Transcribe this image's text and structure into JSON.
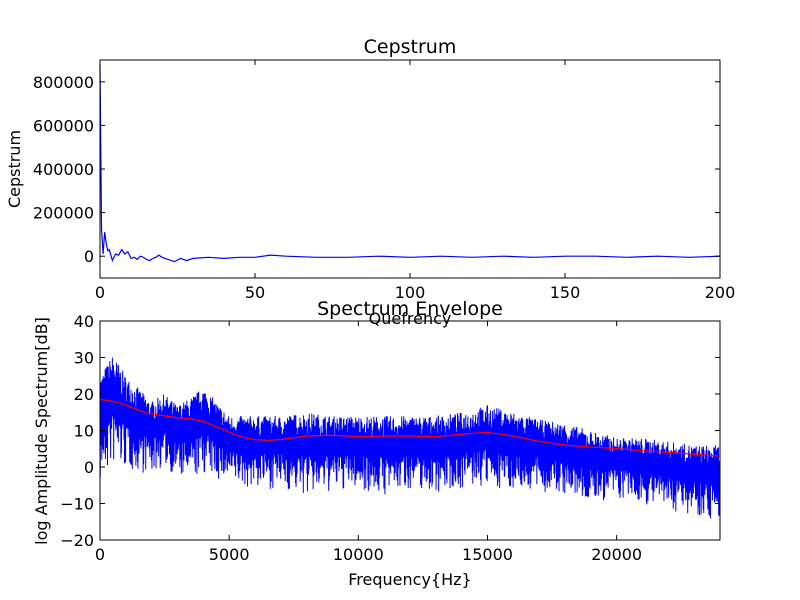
{
  "chart_data": [
    {
      "type": "line",
      "title": "Cepstrum",
      "xlabel": "Quefrency",
      "ylabel": "Cepstrum",
      "xlim": [
        0,
        200
      ],
      "ylim": [
        -100000,
        900000
      ],
      "xticks": [
        0,
        50,
        100,
        150,
        200
      ],
      "yticks": [
        0,
        200000,
        400000,
        600000,
        800000
      ],
      "grid": false,
      "series": [
        {
          "color": "#0000ff",
          "x": [
            0,
            0.5,
            1,
            1.5,
            2,
            2.5,
            3,
            3.5,
            4,
            5,
            6,
            7,
            8,
            9,
            10,
            11,
            12,
            13,
            14,
            15,
            16,
            17,
            18,
            19,
            20,
            22,
            24,
            26,
            28,
            30,
            35,
            40,
            45,
            50,
            55,
            60,
            70,
            80,
            90,
            100,
            110,
            120,
            130,
            140,
            150,
            160,
            170,
            180,
            190,
            200
          ],
          "y": [
            880000,
            120000,
            10000,
            110000,
            60000,
            25000,
            30000,
            5000,
            -20000,
            10000,
            5000,
            30000,
            10000,
            20000,
            -10000,
            -5000,
            -15000,
            0,
            -5000,
            -15000,
            -20000,
            -10000,
            -5000,
            5000,
            -5000,
            -15000,
            -25000,
            -10000,
            -20000,
            -10000,
            -5000,
            -10000,
            -5000,
            -5000,
            5000,
            0,
            -5000,
            -5000,
            0,
            -5000,
            0,
            -5000,
            0,
            -5000,
            0,
            0,
            -5000,
            0,
            -5000,
            0
          ]
        }
      ]
    },
    {
      "type": "line",
      "title": "Spectrum Envelope",
      "xlabel": "Frequency{Hz}",
      "ylabel": "log Amplitude Spectrum[dB]",
      "xlim": [
        0,
        24000
      ],
      "ylim": [
        -20,
        40
      ],
      "xticks": [
        0,
        5000,
        10000,
        15000,
        20000
      ],
      "yticks": [
        -20,
        -10,
        0,
        10,
        20,
        30,
        40
      ],
      "grid": false,
      "series": [
        {
          "color": "#0000ff",
          "x": [
            0,
            500,
            1000,
            2000,
            2500,
            3000,
            3500,
            4000,
            5000,
            6000,
            7000,
            8000,
            9000,
            10000,
            11000,
            12000,
            13000,
            14000,
            15000,
            16000,
            17000,
            18000,
            19000,
            20000,
            21000,
            22000,
            23000,
            24000
          ],
          "upper": [
            25,
            31,
            25,
            18,
            20,
            17,
            19,
            22,
            14,
            14,
            14,
            15,
            14,
            14,
            14,
            14,
            14,
            15,
            17,
            15,
            13,
            12,
            10,
            8,
            8,
            7,
            6,
            6
          ],
          "lower": [
            -5,
            0,
            -1,
            -2,
            0,
            -3,
            -4,
            -2,
            -5,
            -6,
            -6,
            -8,
            -7,
            -6,
            -8,
            -6,
            -7,
            -6,
            -6,
            -6,
            -7,
            -8,
            -10,
            -9,
            -10,
            -12,
            -13,
            -15
          ]
        },
        {
          "color": "#ff0000",
          "x": [
            0,
            500,
            1000,
            1500,
            2000,
            2500,
            3000,
            3500,
            4000,
            4500,
            5000,
            5500,
            6000,
            6500,
            7000,
            8000,
            9000,
            10000,
            11000,
            12000,
            13000,
            14000,
            15000,
            16000,
            17000,
            18000,
            19000,
            20000,
            21000,
            22000,
            23000,
            24000
          ],
          "y": [
            18.5,
            18,
            17,
            15.5,
            14.5,
            14,
            13.5,
            13.2,
            12.5,
            11,
            9.5,
            8.2,
            7.5,
            7.3,
            7.5,
            8.5,
            8.7,
            8.3,
            8.5,
            8.5,
            8.3,
            9,
            9.5,
            8.5,
            7,
            6,
            5.5,
            5,
            4.5,
            4,
            3.5,
            3
          ]
        }
      ]
    }
  ]
}
